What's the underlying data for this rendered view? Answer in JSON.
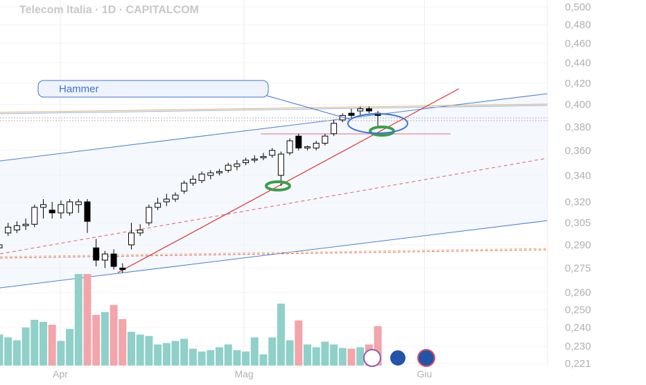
{
  "chart_data": {
    "type": "candlestick",
    "title": "Telecom Italia · 1D · CAPITALCOM",
    "annotation": "Hammer",
    "log": true,
    "grid": true,
    "up_color": "#ffffff",
    "down_color": "#000000",
    "volume_up_color": "#8fd0c9",
    "volume_down_color": "#f2a5aa",
    "categories": [
      null,
      null,
      null,
      null,
      null,
      null,
      null,
      null,
      null,
      null,
      null,
      null,
      null,
      null,
      null,
      null,
      null,
      null,
      null,
      null,
      null,
      null,
      null,
      null,
      null,
      null,
      null,
      null,
      null,
      null,
      null,
      null,
      null,
      null,
      null,
      null,
      null,
      null,
      null,
      null,
      null,
      null,
      null,
      null
    ],
    "open": [
      0.288,
      0.298,
      0.3,
      0.303,
      0.304,
      0.316,
      0.314,
      0.312,
      0.312,
      0.318,
      0.32,
      0.288,
      0.28,
      0.284,
      0.275,
      0.29,
      0.298,
      0.305,
      0.316,
      0.32,
      0.322,
      0.328,
      0.334,
      0.336,
      0.34,
      0.342,
      0.344,
      0.347,
      0.35,
      0.352,
      0.354,
      0.356,
      0.34,
      0.358,
      0.372,
      0.362,
      0.362,
      0.366,
      0.374,
      0.386,
      0.392,
      0.394,
      0.396,
      0.392
    ],
    "high": [
      0.292,
      0.305,
      0.306,
      0.308,
      0.318,
      0.322,
      0.32,
      0.321,
      0.322,
      0.322,
      0.322,
      0.294,
      0.286,
      0.287,
      0.278,
      0.305,
      0.304,
      0.318,
      0.323,
      0.326,
      0.327,
      0.336,
      0.34,
      0.343,
      0.344,
      0.345,
      0.35,
      0.352,
      0.354,
      0.356,
      0.358,
      0.362,
      0.359,
      0.37,
      0.374,
      0.364,
      0.368,
      0.374,
      0.386,
      0.392,
      0.396,
      0.398,
      0.398,
      0.394
    ],
    "low": [
      0.282,
      0.296,
      0.298,
      0.3,
      0.302,
      0.308,
      0.308,
      0.308,
      0.31,
      0.312,
      0.298,
      0.276,
      0.275,
      0.274,
      0.272,
      0.287,
      0.296,
      0.303,
      0.314,
      0.317,
      0.32,
      0.326,
      0.332,
      0.334,
      0.337,
      0.34,
      0.342,
      0.344,
      0.348,
      0.35,
      0.352,
      0.354,
      0.332,
      0.356,
      0.36,
      0.36,
      0.36,
      0.364,
      0.372,
      0.384,
      0.388,
      0.39,
      0.392,
      0.38
    ],
    "close": [
      0.29,
      0.302,
      0.303,
      0.304,
      0.316,
      0.318,
      0.312,
      0.318,
      0.32,
      0.32,
      0.306,
      0.28,
      0.284,
      0.276,
      0.274,
      0.298,
      0.3,
      0.316,
      0.319,
      0.322,
      0.325,
      0.334,
      0.337,
      0.341,
      0.342,
      0.343,
      0.348,
      0.349,
      0.352,
      0.353,
      0.355,
      0.36,
      0.357,
      0.368,
      0.362,
      0.363,
      0.366,
      0.372,
      0.383,
      0.39,
      0.39,
      0.396,
      0.394,
      0.39
    ],
    "volume": [
      44,
      40,
      36,
      54,
      65,
      62,
      58,
      35,
      52,
      130,
      130,
      72,
      76,
      86,
      66,
      48,
      44,
      42,
      30,
      32,
      35,
      38,
      24,
      20,
      22,
      26,
      30,
      22,
      20,
      40,
      16,
      40,
      88,
      36,
      64,
      30,
      26,
      34,
      30,
      25,
      24,
      26,
      30,
      56
    ],
    "ylim": [
      0.221,
      0.5
    ],
    "yticks": [
      {
        "value": 0.5,
        "label": "0,500"
      },
      {
        "value": 0.48,
        "label": "0,480"
      },
      {
        "value": 0.46,
        "label": "0,460"
      },
      {
        "value": 0.44,
        "label": "0,440"
      },
      {
        "value": 0.42,
        "label": "0,420"
      },
      {
        "value": 0.4,
        "label": "0,400"
      },
      {
        "value": 0.38,
        "label": "0,380"
      },
      {
        "value": 0.36,
        "label": "0,360"
      },
      {
        "value": 0.34,
        "label": "0,340"
      },
      {
        "value": 0.32,
        "label": "0,320"
      },
      {
        "value": 0.305,
        "label": "0,305"
      },
      {
        "value": 0.29,
        "label": "0,290"
      },
      {
        "value": 0.275,
        "label": "0,275"
      },
      {
        "value": 0.26,
        "label": "0,260"
      },
      {
        "value": 0.25,
        "label": "0,250"
      },
      {
        "value": 0.24,
        "label": "0,240"
      },
      {
        "value": 0.23,
        "label": "0,230"
      },
      {
        "value": 0.221,
        "label": "0,221"
      }
    ],
    "xticks": [
      {
        "value": 6.93,
        "label": "Apr"
      },
      {
        "value": 27.8,
        "label": "Mag"
      },
      {
        "value": 48.3,
        "label": "Giu"
      }
    ]
  }
}
